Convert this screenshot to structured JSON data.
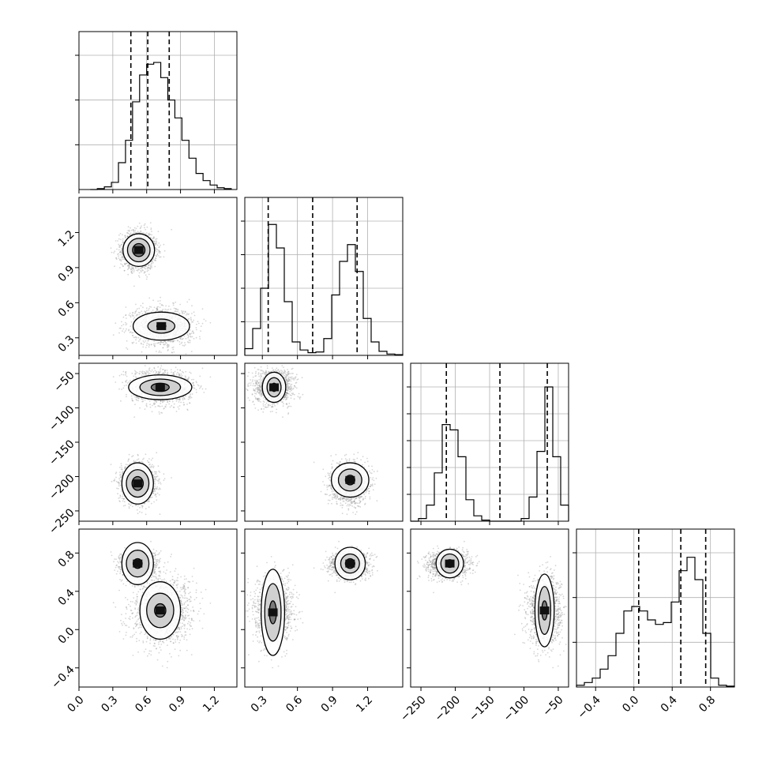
{
  "chart_data": {
    "type": "corner",
    "n_params": 4,
    "grid_on_diagonal": true,
    "colors": {
      "line": "#000000",
      "grid": "#b0b0b0",
      "points": "#8a8a8a"
    },
    "axes": [
      {
        "range": [
          0.0,
          1.4
        ],
        "ticks": [
          0.0,
          0.3,
          0.6,
          0.9,
          1.2
        ],
        "tick_labels": [
          "0.0",
          "0.3",
          "0.6",
          "0.9",
          "1.2"
        ]
      },
      {
        "range": [
          0.15,
          1.5
        ],
        "ticks": [
          0.3,
          0.6,
          0.9,
          1.2
        ],
        "tick_labels": [
          "0.3",
          "0.6",
          "0.9",
          "1.2"
        ]
      },
      {
        "range": [
          -265,
          -35
        ],
        "ticks": [
          -250,
          -200,
          -150,
          -100,
          -50
        ],
        "tick_labels": [
          "−250",
          "−200",
          "−150",
          "−100",
          "−50"
        ]
      },
      {
        "range": [
          -0.6,
          1.05
        ],
        "ticks": [
          -0.4,
          0.0,
          0.4,
          0.8
        ],
        "tick_labels": [
          "−0.4",
          "0.0",
          "0.4",
          "0.8"
        ]
      }
    ],
    "histograms": [
      {
        "param": 0,
        "edges": [
          0.1,
          1.35
        ],
        "counts": [
          0,
          1,
          3,
          8,
          30,
          55,
          98,
          128,
          140,
          142,
          125,
          100,
          80,
          55,
          35,
          18,
          10,
          5,
          2,
          1
        ],
        "quantiles": [
          0.46,
          0.61,
          0.8
        ],
        "max_grid": 150,
        "grid_levels": [
          50,
          100,
          150
        ]
      },
      {
        "param": 1,
        "edges": [
          0.15,
          1.5
        ],
        "counts": [
          10,
          40,
          100,
          195,
          160,
          80,
          20,
          8,
          4,
          5,
          25,
          90,
          140,
          165,
          125,
          55,
          20,
          6,
          2,
          1
        ],
        "quantiles": [
          0.35,
          0.73,
          1.11
        ],
        "max_grid": 200,
        "grid_levels": [
          50,
          100,
          150,
          200
        ]
      },
      {
        "param": 2,
        "edges": [
          -265,
          -35
        ],
        "counts": [
          0,
          5,
          30,
          90,
          180,
          170,
          120,
          40,
          10,
          2,
          0,
          0,
          0,
          0,
          5,
          45,
          130,
          250,
          120,
          30
        ],
        "quantiles": [
          -213,
          -135,
          -66
        ],
        "max_grid": 250,
        "grid_levels": [
          50,
          100,
          150,
          200,
          250
        ]
      },
      {
        "param": 3,
        "edges": [
          -0.6,
          1.05
        ],
        "counts": [
          2,
          5,
          10,
          20,
          35,
          60,
          85,
          90,
          85,
          75,
          70,
          72,
          95,
          130,
          145,
          120,
          60,
          10,
          2,
          1
        ],
        "quantiles": [
          0.05,
          0.49,
          0.75
        ],
        "max_grid": 150,
        "grid_levels": [
          50,
          100,
          150
        ]
      }
    ],
    "clusters": [
      {
        "weight": 0.5,
        "mean": [
          0.53,
          1.05,
          -210,
          0.68
        ],
        "sd": [
          0.08,
          0.08,
          14,
          0.07
        ],
        "corr": [
          0,
          0,
          0,
          0
        ]
      },
      {
        "weight": 0.5,
        "mean": [
          0.74,
          0.4,
          -70,
          0.2
        ],
        "sd": [
          0.13,
          0.08,
          12,
          0.17
        ],
        "corr": [
          0,
          0,
          0,
          0
        ]
      }
    ],
    "pair_contours": [
      {
        "row": 1,
        "col": 0,
        "blobs": [
          {
            "center": [
              0.53,
              1.05
            ],
            "r1": [
              0.055,
              0.055
            ],
            "r2": [
              0.1,
              0.1
            ],
            "r3": [
              0.14,
              0.14
            ]
          },
          {
            "center": [
              0.73,
              0.4
            ],
            "r1": [
              0.04,
              0.02
            ],
            "r2": [
              0.12,
              0.06
            ],
            "r3": [
              0.25,
              0.12
            ]
          }
        ]
      },
      {
        "row": 2,
        "col": 0,
        "blobs": [
          {
            "center": [
              0.72,
              -70
            ],
            "r1": [
              0.08,
              6
            ],
            "r2": [
              0.18,
              12
            ],
            "r3": [
              0.28,
              18
            ]
          },
          {
            "center": [
              0.52,
              -210
            ],
            "r1": [
              0.05,
              10
            ],
            "r2": [
              0.1,
              20
            ],
            "r3": [
              0.14,
              30
            ]
          }
        ]
      },
      {
        "row": 2,
        "col": 1,
        "blobs": [
          {
            "center": [
              0.4,
              -70
            ],
            "r1": [
              0.025,
              6
            ],
            "r2": [
              0.06,
              14
            ],
            "r3": [
              0.1,
              22
            ]
          },
          {
            "center": [
              1.05,
              -205
            ],
            "r1": [
              0.04,
              7
            ],
            "r2": [
              0.1,
              16
            ],
            "r3": [
              0.16,
              25
            ]
          }
        ]
      },
      {
        "row": 3,
        "col": 0,
        "blobs": [
          {
            "center": [
              0.52,
              0.69
            ],
            "r1": [
              0.04,
              0.05
            ],
            "r2": [
              0.1,
              0.14
            ],
            "r3": [
              0.14,
              0.22
            ]
          },
          {
            "center": [
              0.72,
              0.2
            ],
            "r1": [
              0.05,
              0.07
            ],
            "r2": [
              0.12,
              0.18
            ],
            "r3": [
              0.18,
              0.3
            ]
          }
        ]
      },
      {
        "row": 3,
        "col": 1,
        "blobs": [
          {
            "center": [
              0.39,
              0.18
            ],
            "r1": [
              0.03,
              0.12
            ],
            "r2": [
              0.07,
              0.3
            ],
            "r3": [
              0.1,
              0.45
            ]
          },
          {
            "center": [
              1.05,
              0.69
            ],
            "r1": [
              0.04,
              0.05
            ],
            "r2": [
              0.08,
              0.1
            ],
            "r3": [
              0.13,
              0.17
            ]
          }
        ]
      },
      {
        "row": 3,
        "col": 2,
        "blobs": [
          {
            "center": [
              -208,
              0.69
            ],
            "r1": [
              6,
              0.04
            ],
            "r2": [
              13,
              0.1
            ],
            "r3": [
              20,
              0.15
            ]
          },
          {
            "center": [
              -70,
              0.2
            ],
            "r1": [
              4,
              0.1
            ],
            "r2": [
              9,
              0.25
            ],
            "r3": [
              14,
              0.38
            ]
          }
        ]
      }
    ]
  }
}
